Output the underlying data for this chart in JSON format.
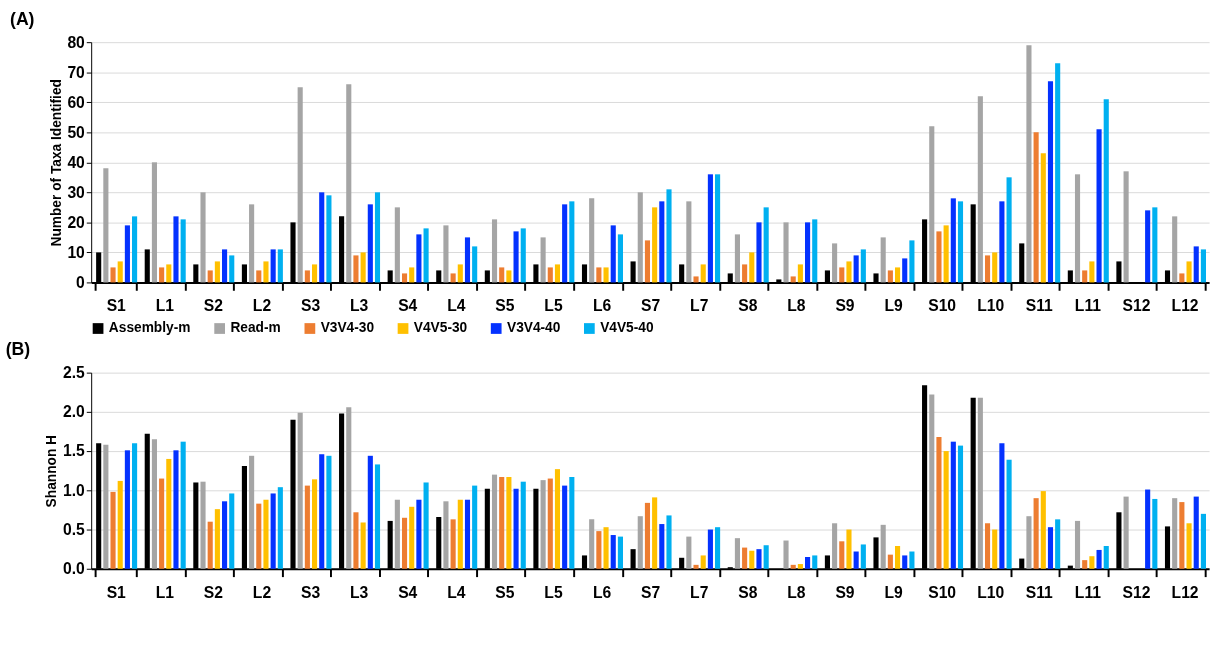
{
  "chart_data": [
    {
      "type": "bar",
      "title": "(A)",
      "ylabel": "Number of Taxa Identified",
      "categories": [
        "S1",
        "L1",
        "S2",
        "L2",
        "S3",
        "L3",
        "S4",
        "L4",
        "S5",
        "L5",
        "L6",
        "S7",
        "L7",
        "S8",
        "L8",
        "S9",
        "L9",
        "S10",
        "L10",
        "S11",
        "L11",
        "S12",
        "L12"
      ],
      "series": [
        {
          "name": "Assembly-m",
          "color": "#000000",
          "values": [
            10,
            11,
            6,
            6,
            20,
            22,
            4,
            4,
            4,
            6,
            6,
            7,
            6,
            3,
            1,
            4,
            3,
            21,
            26,
            13,
            4,
            7,
            4
          ]
        },
        {
          "name": "Read-m",
          "color": "#a5a5a5",
          "values": [
            38,
            40,
            30,
            26,
            65,
            66,
            25,
            19,
            21,
            15,
            28,
            30,
            27,
            16,
            20,
            13,
            15,
            52,
            62,
            79,
            36,
            37,
            22
          ]
        },
        {
          "name": "V3V4-30",
          "color": "#ed7d31",
          "values": [
            5,
            5,
            4,
            4,
            4,
            9,
            3,
            3,
            5,
            5,
            5,
            14,
            2,
            6,
            2,
            5,
            4,
            17,
            9,
            50,
            4,
            null,
            3
          ]
        },
        {
          "name": "V4V5-30",
          "color": "#ffc000",
          "values": [
            7,
            6,
            7,
            7,
            6,
            10,
            5,
            6,
            4,
            6,
            5,
            25,
            6,
            10,
            6,
            7,
            5,
            19,
            10,
            43,
            7,
            null,
            7
          ]
        },
        {
          "name": "V3V4-40",
          "color": "#0432ff",
          "values": [
            19,
            22,
            11,
            11,
            30,
            26,
            16,
            15,
            17,
            26,
            19,
            27,
            36,
            20,
            20,
            9,
            8,
            28,
            27,
            67,
            51,
            24,
            12
          ]
        },
        {
          "name": "V4V5-40",
          "color": "#00b0f0",
          "values": [
            22,
            21,
            9,
            11,
            29,
            30,
            18,
            12,
            18,
            27,
            16,
            31,
            36,
            25,
            21,
            11,
            14,
            27,
            35,
            73,
            61,
            25,
            11
          ]
        }
      ],
      "ylim": [
        0,
        80
      ],
      "yticks": [
        0,
        10,
        20,
        30,
        40,
        50,
        60,
        70,
        80
      ],
      "grid": "y",
      "legend": "bottom"
    },
    {
      "type": "bar",
      "title": "(B)",
      "ylabel": "Shannon H",
      "categories": [
        "S1",
        "L1",
        "S2",
        "L2",
        "S3",
        "L3",
        "S4",
        "L4",
        "S5",
        "L5",
        "L6",
        "S7",
        "L7",
        "S8",
        "L8",
        "S9",
        "L9",
        "S10",
        "L10",
        "S11",
        "L11",
        "S12",
        "L12"
      ],
      "series": [
        {
          "name": "Assembly-m",
          "color": "#000000",
          "values": [
            1.6,
            1.72,
            1.1,
            1.31,
            1.9,
            1.98,
            0.61,
            0.66,
            1.02,
            1.02,
            0.17,
            0.25,
            0.14,
            0.02,
            0,
            0.17,
            0.4,
            2.34,
            2.18,
            0.13,
            0.04,
            0.72,
            0.54
          ]
        },
        {
          "name": "Read-m",
          "color": "#a5a5a5",
          "values": [
            1.58,
            1.65,
            1.11,
            1.44,
            1.99,
            2.06,
            0.88,
            0.86,
            1.2,
            1.13,
            0.63,
            0.67,
            0.41,
            0.39,
            0.36,
            0.58,
            0.56,
            2.22,
            2.18,
            0.67,
            0.61,
            0.92,
            0.9
          ]
        },
        {
          "name": "V3V4-30",
          "color": "#ed7d31",
          "values": [
            0.98,
            1.15,
            0.6,
            0.83,
            1.06,
            0.72,
            0.65,
            0.63,
            1.17,
            1.15,
            0.48,
            0.84,
            0.05,
            0.27,
            0.05,
            0.35,
            0.18,
            1.68,
            0.58,
            0.9,
            0.11,
            null,
            0.85
          ]
        },
        {
          "name": "V4V5-30",
          "color": "#ffc000",
          "values": [
            1.12,
            1.4,
            0.76,
            0.88,
            1.14,
            0.59,
            0.79,
            0.88,
            1.17,
            1.27,
            0.53,
            0.91,
            0.17,
            0.23,
            0.06,
            0.5,
            0.29,
            1.5,
            0.5,
            0.99,
            0.16,
            null,
            0.58
          ]
        },
        {
          "name": "V3V4-40",
          "color": "#0432ff",
          "values": [
            1.51,
            1.51,
            0.86,
            0.96,
            1.46,
            1.44,
            0.88,
            0.88,
            1.02,
            1.06,
            0.43,
            0.57,
            0.5,
            0.25,
            0.15,
            0.22,
            0.17,
            1.62,
            1.6,
            0.53,
            0.24,
            1.01,
            0.92
          ]
        },
        {
          "name": "V4V5-40",
          "color": "#00b0f0",
          "values": [
            1.6,
            1.62,
            0.96,
            1.04,
            1.44,
            1.33,
            1.1,
            1.06,
            1.11,
            1.17,
            0.41,
            0.68,
            0.53,
            0.3,
            0.17,
            0.31,
            0.22,
            1.57,
            1.39,
            0.63,
            0.29,
            0.89,
            0.7
          ]
        }
      ],
      "ylim": [
        0,
        2.5
      ],
      "yticks": [
        {
          "value": 0,
          "label": "0.0"
        },
        {
          "value": 0.5,
          "label": "0.5"
        },
        {
          "value": 1,
          "label": "1.0"
        },
        {
          "value": 1.5,
          "label": "1.5"
        },
        {
          "value": 2,
          "label": "2.0"
        },
        {
          "value": 2.5,
          "label": "2.5"
        }
      ],
      "grid": "y",
      "legend": false
    }
  ]
}
